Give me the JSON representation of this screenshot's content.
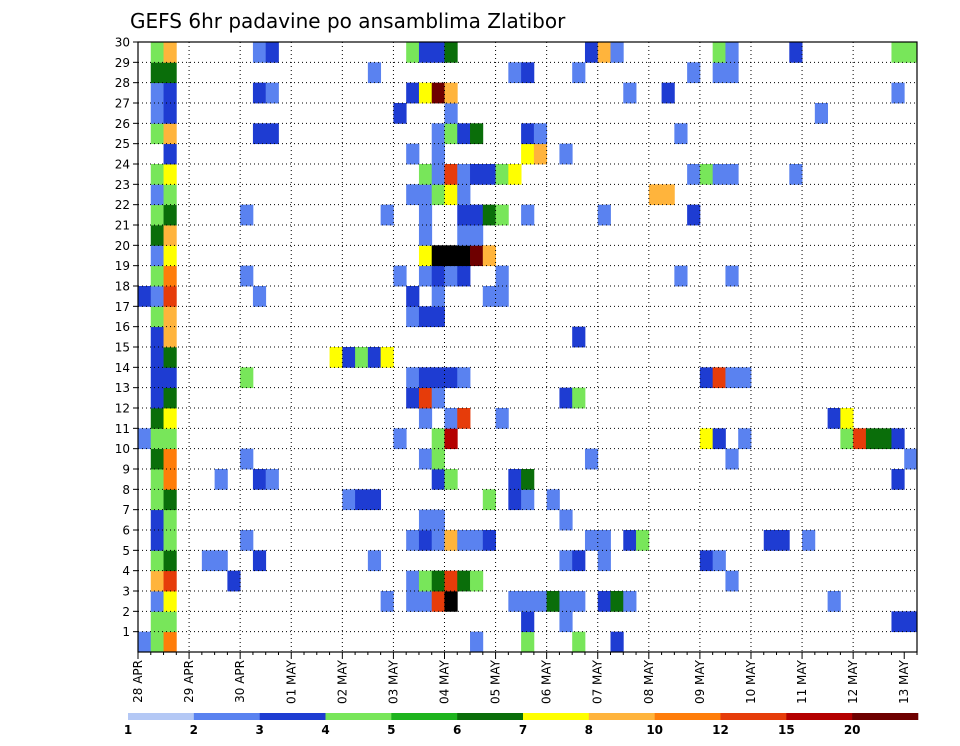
{
  "chart_data": {
    "type": "heatmap",
    "title": "GEFS 6hr padavine po ansamblima Zlatibor",
    "xlabel": "",
    "ylabel": "",
    "x_tick_labels": [
      "28 APR",
      "29 APR",
      "30 APR",
      "01 MAY",
      "02 MAY",
      "03 MAY",
      "04 MAY",
      "05 MAY",
      "06 MAY",
      "07 MAY",
      "08 MAY",
      "09 MAY",
      "10 MAY",
      "11 MAY",
      "12 MAY",
      "13 MAY"
    ],
    "x_steps_total": 61,
    "y_tick_labels": [
      "1",
      "2",
      "3",
      "4",
      "5",
      "6",
      "7",
      "8",
      "9",
      "10",
      "11",
      "12",
      "13",
      "14",
      "15",
      "16",
      "17",
      "18",
      "19",
      "20",
      "21",
      "22",
      "23",
      "24",
      "25",
      "26",
      "27",
      "28",
      "29",
      "30"
    ],
    "y_range": [
      0,
      30
    ],
    "grid": true,
    "legend": {
      "placement": "bottom",
      "boundaries": [
        "1",
        "2",
        "3",
        "4",
        "5",
        "6",
        "7",
        "8",
        "10",
        "12",
        "15",
        "20"
      ],
      "colors": [
        "#b4c8f5",
        "#5a82f0",
        "#1e3cd2",
        "#78e65a",
        "#1eb41e",
        "#0a6e0a",
        "#ffff00",
        "#ffb43c",
        "#ff7d0a",
        "#e63c0a",
        "#b40000",
        "#6e0000"
      ]
    },
    "cells": [
      [
        1,
        0,
        1
      ],
      [
        1,
        1,
        3
      ],
      [
        1,
        2,
        8
      ],
      [
        1,
        26,
        1
      ],
      [
        1,
        30,
        3
      ],
      [
        1,
        34,
        3
      ],
      [
        1,
        37,
        2
      ],
      [
        2,
        1,
        3
      ],
      [
        2,
        2,
        3
      ],
      [
        2,
        30,
        2
      ],
      [
        2,
        33,
        1
      ],
      [
        2,
        59,
        2
      ],
      [
        2,
        60,
        2
      ],
      [
        3,
        1,
        1
      ],
      [
        3,
        2,
        6
      ],
      [
        3,
        19,
        1
      ],
      [
        3,
        21,
        1
      ],
      [
        3,
        22,
        1
      ],
      [
        3,
        23,
        9
      ],
      [
        3,
        24,
        12
      ],
      [
        3,
        29,
        1
      ],
      [
        3,
        30,
        1
      ],
      [
        3,
        31,
        1
      ],
      [
        3,
        32,
        5
      ],
      [
        3,
        33,
        1
      ],
      [
        3,
        34,
        1
      ],
      [
        3,
        36,
        2
      ],
      [
        3,
        37,
        5
      ],
      [
        3,
        38,
        1
      ],
      [
        3,
        54,
        1
      ],
      [
        4,
        1,
        7
      ],
      [
        4,
        2,
        9
      ],
      [
        4,
        7,
        2
      ],
      [
        4,
        21,
        1
      ],
      [
        4,
        22,
        3
      ],
      [
        4,
        23,
        5
      ],
      [
        4,
        24,
        9
      ],
      [
        4,
        25,
        5
      ],
      [
        4,
        26,
        3
      ],
      [
        4,
        46,
        1
      ],
      [
        5,
        1,
        3
      ],
      [
        5,
        2,
        5
      ],
      [
        5,
        5,
        1
      ],
      [
        5,
        6,
        1
      ],
      [
        5,
        9,
        2
      ],
      [
        5,
        18,
        1
      ],
      [
        5,
        33,
        1
      ],
      [
        5,
        34,
        2
      ],
      [
        5,
        36,
        1
      ],
      [
        5,
        44,
        2
      ],
      [
        5,
        45,
        1
      ],
      [
        6,
        1,
        2
      ],
      [
        6,
        2,
        3
      ],
      [
        6,
        8,
        1
      ],
      [
        6,
        21,
        1
      ],
      [
        6,
        22,
        2
      ],
      [
        6,
        23,
        1
      ],
      [
        6,
        24,
        7
      ],
      [
        6,
        25,
        1
      ],
      [
        6,
        26,
        1
      ],
      [
        6,
        27,
        2
      ],
      [
        6,
        35,
        1
      ],
      [
        6,
        36,
        1
      ],
      [
        6,
        38,
        2
      ],
      [
        6,
        39,
        3
      ],
      [
        6,
        49,
        2
      ],
      [
        6,
        50,
        2
      ],
      [
        6,
        52,
        1
      ],
      [
        7,
        1,
        2
      ],
      [
        7,
        2,
        3
      ],
      [
        7,
        22,
        1
      ],
      [
        7,
        23,
        1
      ],
      [
        7,
        33,
        1
      ],
      [
        8,
        1,
        3
      ],
      [
        8,
        2,
        5
      ],
      [
        8,
        16,
        1
      ],
      [
        8,
        17,
        2
      ],
      [
        8,
        18,
        2
      ],
      [
        8,
        27,
        3
      ],
      [
        8,
        29,
        2
      ],
      [
        8,
        30,
        1
      ],
      [
        8,
        32,
        1
      ],
      [
        9,
        1,
        3
      ],
      [
        9,
        2,
        8
      ],
      [
        9,
        6,
        1
      ],
      [
        9,
        9,
        2
      ],
      [
        9,
        10,
        1
      ],
      [
        9,
        23,
        2
      ],
      [
        9,
        24,
        3
      ],
      [
        9,
        29,
        2
      ],
      [
        9,
        30,
        5
      ],
      [
        9,
        59,
        2
      ],
      [
        10,
        1,
        5
      ],
      [
        10,
        2,
        8
      ],
      [
        10,
        8,
        1
      ],
      [
        10,
        22,
        1
      ],
      [
        10,
        23,
        3
      ],
      [
        10,
        35,
        1
      ],
      [
        10,
        46,
        1
      ],
      [
        10,
        60,
        1
      ],
      [
        11,
        0,
        1
      ],
      [
        11,
        1,
        3
      ],
      [
        11,
        2,
        3
      ],
      [
        11,
        20,
        1
      ],
      [
        11,
        23,
        3
      ],
      [
        11,
        24,
        10
      ],
      [
        11,
        44,
        6
      ],
      [
        11,
        45,
        2
      ],
      [
        11,
        47,
        1
      ],
      [
        11,
        55,
        3
      ],
      [
        11,
        56,
        9
      ],
      [
        11,
        57,
        5
      ],
      [
        11,
        58,
        5
      ],
      [
        11,
        59,
        2
      ],
      [
        12,
        1,
        5
      ],
      [
        12,
        2,
        6
      ],
      [
        12,
        22,
        1
      ],
      [
        12,
        24,
        1
      ],
      [
        12,
        25,
        9
      ],
      [
        12,
        28,
        1
      ],
      [
        12,
        54,
        2
      ],
      [
        12,
        55,
        6
      ],
      [
        13,
        1,
        2
      ],
      [
        13,
        2,
        5
      ],
      [
        13,
        21,
        2
      ],
      [
        13,
        22,
        9
      ],
      [
        13,
        23,
        1
      ],
      [
        13,
        33,
        2
      ],
      [
        13,
        34,
        3
      ],
      [
        14,
        1,
        2
      ],
      [
        14,
        2,
        2
      ],
      [
        14,
        8,
        3
      ],
      [
        14,
        21,
        1
      ],
      [
        14,
        22,
        2
      ],
      [
        14,
        23,
        2
      ],
      [
        14,
        24,
        2
      ],
      [
        14,
        25,
        1
      ],
      [
        14,
        44,
        2
      ],
      [
        14,
        45,
        9
      ],
      [
        14,
        46,
        1
      ],
      [
        14,
        47,
        1
      ],
      [
        15,
        1,
        2
      ],
      [
        15,
        2,
        5
      ],
      [
        15,
        15,
        6
      ],
      [
        15,
        16,
        2
      ],
      [
        15,
        17,
        3
      ],
      [
        15,
        18,
        2
      ],
      [
        15,
        19,
        6
      ],
      [
        16,
        1,
        2
      ],
      [
        16,
        2,
        7
      ],
      [
        16,
        34,
        2
      ],
      [
        17,
        1,
        3
      ],
      [
        17,
        2,
        7
      ],
      [
        17,
        21,
        1
      ],
      [
        17,
        22,
        2
      ],
      [
        17,
        23,
        2
      ],
      [
        18,
        0,
        2
      ],
      [
        18,
        1,
        1
      ],
      [
        18,
        2,
        9
      ],
      [
        18,
        9,
        1
      ],
      [
        18,
        21,
        2
      ],
      [
        18,
        23,
        1
      ],
      [
        18,
        27,
        1
      ],
      [
        18,
        28,
        1
      ],
      [
        19,
        1,
        3
      ],
      [
        19,
        2,
        8
      ],
      [
        19,
        8,
        1
      ],
      [
        19,
        20,
        1
      ],
      [
        19,
        22,
        1
      ],
      [
        19,
        23,
        2
      ],
      [
        19,
        24,
        1
      ],
      [
        19,
        25,
        2
      ],
      [
        19,
        28,
        1
      ],
      [
        19,
        42,
        1
      ],
      [
        19,
        46,
        1
      ],
      [
        20,
        1,
        1
      ],
      [
        20,
        2,
        6
      ],
      [
        20,
        22,
        6
      ],
      [
        20,
        23,
        12
      ],
      [
        20,
        24,
        12
      ],
      [
        20,
        25,
        13
      ],
      [
        20,
        26,
        11
      ],
      [
        20,
        27,
        7
      ],
      [
        21,
        1,
        5
      ],
      [
        21,
        2,
        7
      ],
      [
        21,
        22,
        1
      ],
      [
        21,
        25,
        1
      ],
      [
        21,
        26,
        1
      ],
      [
        22,
        1,
        3
      ],
      [
        22,
        2,
        5
      ],
      [
        22,
        8,
        1
      ],
      [
        22,
        19,
        1
      ],
      [
        22,
        22,
        1
      ],
      [
        22,
        25,
        2
      ],
      [
        22,
        26,
        2
      ],
      [
        22,
        27,
        5
      ],
      [
        22,
        28,
        3
      ],
      [
        22,
        30,
        1
      ],
      [
        22,
        36,
        1
      ],
      [
        22,
        43,
        2
      ],
      [
        23,
        1,
        1
      ],
      [
        23,
        2,
        3
      ],
      [
        23,
        21,
        1
      ],
      [
        23,
        22,
        1
      ],
      [
        23,
        23,
        3
      ],
      [
        23,
        24,
        6
      ],
      [
        23,
        25,
        1
      ],
      [
        23,
        40,
        7
      ],
      [
        23,
        41,
        7
      ],
      [
        24,
        1,
        3
      ],
      [
        24,
        2,
        6
      ],
      [
        24,
        22,
        3
      ],
      [
        24,
        23,
        1
      ],
      [
        24,
        24,
        9
      ],
      [
        24,
        25,
        1
      ],
      [
        24,
        26,
        2
      ],
      [
        24,
        27,
        2
      ],
      [
        24,
        28,
        3
      ],
      [
        24,
        29,
        6
      ],
      [
        24,
        43,
        1
      ],
      [
        24,
        44,
        3
      ],
      [
        24,
        45,
        1
      ],
      [
        24,
        46,
        1
      ],
      [
        24,
        51,
        1
      ],
      [
        25,
        2,
        2
      ],
      [
        25,
        21,
        1
      ],
      [
        25,
        23,
        1
      ],
      [
        25,
        30,
        6
      ],
      [
        25,
        31,
        7
      ],
      [
        25,
        33,
        1
      ],
      [
        26,
        1,
        3
      ],
      [
        26,
        2,
        7
      ],
      [
        26,
        9,
        2
      ],
      [
        26,
        10,
        2
      ],
      [
        26,
        23,
        1
      ],
      [
        26,
        24,
        3
      ],
      [
        26,
        25,
        2
      ],
      [
        26,
        26,
        5
      ],
      [
        26,
        30,
        2
      ],
      [
        26,
        31,
        1
      ],
      [
        26,
        42,
        1
      ],
      [
        27,
        1,
        1
      ],
      [
        27,
        2,
        2
      ],
      [
        27,
        20,
        2
      ],
      [
        27,
        24,
        1
      ],
      [
        27,
        53,
        1
      ],
      [
        28,
        1,
        1
      ],
      [
        28,
        2,
        2
      ],
      [
        28,
        9,
        2
      ],
      [
        28,
        10,
        1
      ],
      [
        28,
        21,
        2
      ],
      [
        28,
        22,
        6
      ],
      [
        28,
        23,
        11
      ],
      [
        28,
        24,
        7
      ],
      [
        28,
        38,
        1
      ],
      [
        28,
        41,
        2
      ],
      [
        28,
        59,
        1
      ],
      [
        29,
        1,
        5
      ],
      [
        29,
        2,
        5
      ],
      [
        29,
        18,
        1
      ],
      [
        29,
        29,
        1
      ],
      [
        29,
        30,
        2
      ],
      [
        29,
        34,
        1
      ],
      [
        29,
        43,
        1
      ],
      [
        29,
        45,
        1
      ],
      [
        29,
        46,
        1
      ],
      [
        30,
        1,
        3
      ],
      [
        30,
        2,
        7
      ],
      [
        30,
        9,
        1
      ],
      [
        30,
        10,
        2
      ],
      [
        30,
        21,
        3
      ],
      [
        30,
        22,
        2
      ],
      [
        30,
        23,
        2
      ],
      [
        30,
        24,
        5
      ],
      [
        30,
        35,
        2
      ],
      [
        30,
        36,
        7
      ],
      [
        30,
        37,
        1
      ],
      [
        30,
        45,
        3
      ],
      [
        30,
        46,
        1
      ],
      [
        30,
        51,
        2
      ],
      [
        30,
        59,
        3
      ],
      [
        30,
        60,
        3
      ]
    ]
  }
}
